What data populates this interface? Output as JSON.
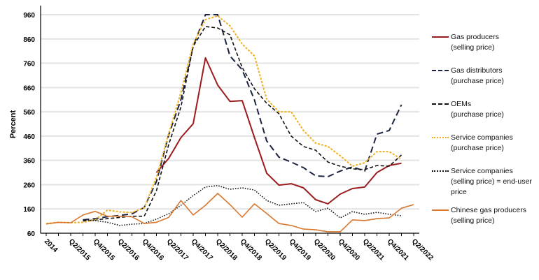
{
  "chart_data": {
    "type": "line",
    "title": "",
    "xlabel": "",
    "ylabel": "Percent",
    "ylim": [
      60,
      960
    ],
    "yticks": [
      60,
      160,
      260,
      360,
      460,
      560,
      660,
      760,
      860,
      960
    ],
    "grid": true,
    "legend_position": "right",
    "x_quarters": [
      "Q4/2014",
      "Q1/2015",
      "Q2/2015",
      "Q3/2015",
      "Q4/2015",
      "Q1/2016",
      "Q2/2016",
      "Q3/2016",
      "Q4/2016",
      "Q1/2017",
      "Q2/2017",
      "Q3/2017",
      "Q4/2017",
      "Q1/2018",
      "Q2/2018",
      "Q3/2018",
      "Q4/2018",
      "Q1/2019",
      "Q2/2019",
      "Q3/2019",
      "Q4/2019",
      "Q1/2020",
      "Q2/2020",
      "Q3/2020",
      "Q4/2020",
      "Q1/2021",
      "Q2/2021",
      "Q3/2021",
      "Q4/2021",
      "Q1/2022",
      "Q2/2022"
    ],
    "x_tick_labels": [
      "2014",
      "Q2/2015",
      "Q4/2015",
      "Q2/2016",
      "Q4/2016",
      "Q2/2017",
      "Q4/2017",
      "Q2/2018",
      "Q4/2018",
      "Q2/2019",
      "Q4/2019",
      "Q2/2020",
      "Q4/2020",
      "Q2/2021",
      "Q4/2021",
      "Q2/2022"
    ],
    "series": [
      {
        "name": "Gas producers (selling price)",
        "label_lines": [
          "Gas producers",
          "(selling price)"
        ],
        "color": "#9b1c1f",
        "dash": "",
        "width": 2,
        "values": [
          null,
          null,
          null,
          null,
          null,
          null,
          null,
          null,
          null,
          310,
          368,
          454,
          511,
          782,
          670,
          603,
          606,
          454,
          307,
          258,
          264,
          247,
          198,
          181,
          221,
          244,
          250,
          310,
          339,
          348,
          null
        ]
      },
      {
        "name": "Gas distributors (purchase price)",
        "label_lines": [
          "Gas distributors",
          "(purchase price)"
        ],
        "color": "#1a2340",
        "dash": "9 5",
        "width": 2,
        "values": [
          null,
          null,
          null,
          115,
          120,
          128,
          133,
          140,
          166,
          273,
          465,
          610,
          830,
          960,
          960,
          790,
          733,
          609,
          440,
          373,
          353,
          330,
          296,
          293,
          316,
          333,
          316,
          468,
          483,
          589,
          null
        ]
      },
      {
        "name": "OEMs (purchase price)",
        "label_lines": [
          "OEMs",
          "(purchase price)"
        ],
        "color": "#111111",
        "dash": "5 3",
        "width": 1.6,
        "values": [
          null,
          null,
          null,
          110,
          115,
          120,
          125,
          130,
          130,
          235,
          425,
          580,
          830,
          911,
          905,
          877,
          742,
          655,
          595,
          552,
          460,
          417,
          402,
          353,
          336,
          325,
          322,
          339,
          336,
          382,
          null
        ]
      },
      {
        "name": "Service companies (purchase price)",
        "label_lines": [
          "Service companies",
          "(purchase price)"
        ],
        "color": "#f0b020",
        "dash": "3 2",
        "width": 2,
        "values": [
          100,
          105,
          103,
          105,
          115,
          155,
          148,
          145,
          165,
          290,
          470,
          640,
          840,
          940,
          955,
          914,
          839,
          790,
          612,
          560,
          560,
          483,
          431,
          417,
          379,
          336,
          350,
          396,
          396,
          365,
          null
        ]
      },
      {
        "name": "Service companies (selling price) = end-user price",
        "label_lines": [
          "Service companies",
          "(selling price) = end-user",
          "price"
        ],
        "color": "#111111",
        "dash": "1.5 2",
        "width": 1.6,
        "values": [
          null,
          null,
          null,
          115,
          112,
          105,
          92,
          97,
          100,
          118,
          140,
          175,
          215,
          250,
          256,
          241,
          247,
          238,
          195,
          175,
          181,
          186,
          149,
          163,
          123,
          149,
          138,
          146,
          138,
          132,
          null
        ]
      },
      {
        "name": "Chinese gas producers (selling price)",
        "label_lines": [
          "Chinese gas producers",
          "(selling price)"
        ],
        "color": "#d9772e",
        "dash": "",
        "width": 1.6,
        "values": [
          98,
          105,
          103,
          135,
          150,
          130,
          130,
          128,
          100,
          105,
          125,
          195,
          135,
          175,
          224,
          178,
          126,
          181,
          141,
          100,
          92,
          77,
          74,
          66,
          66,
          115,
          112,
          120,
          123,
          163,
          178
        ]
      }
    ]
  }
}
